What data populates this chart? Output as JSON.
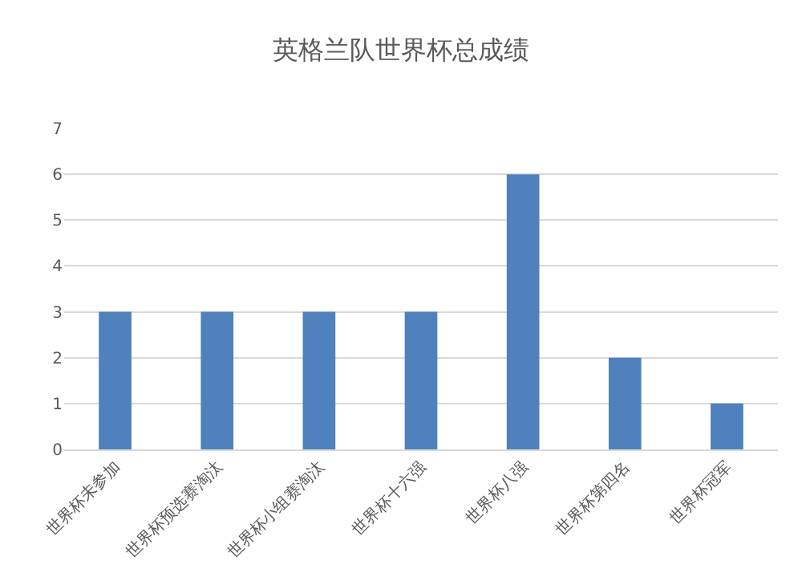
{
  "chart_data": {
    "type": "bar",
    "title": "英格兰队世界杯总成绩",
    "categories": [
      "世界杯未参加",
      "世界杯预选赛淘汰",
      "世界杯小组赛淘汰",
      "世界杯十六强",
      "世界杯八强",
      "世界杯第四名",
      "世界杯冠军"
    ],
    "values": [
      3,
      3,
      3,
      3,
      6,
      2,
      1
    ],
    "color": "#4f81bd",
    "ylim": [
      0,
      7
    ],
    "yticks": [
      0,
      1,
      2,
      3,
      4,
      5,
      6,
      7
    ],
    "grid": "y"
  }
}
